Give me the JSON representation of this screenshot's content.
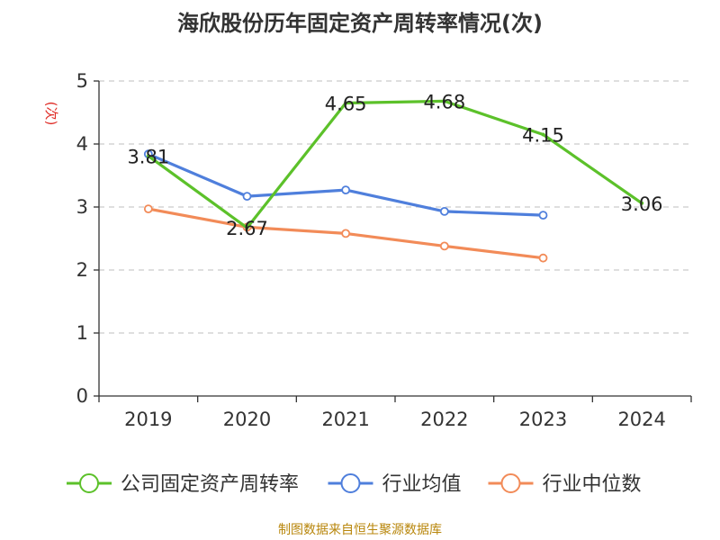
{
  "chart_data": {
    "type": "line",
    "title": "海欣股份历年固定资产周转率情况(次)",
    "ylabel": "(次)",
    "xlabel": "",
    "categories": [
      "2019",
      "2020",
      "2021",
      "2022",
      "2023",
      "2024"
    ],
    "ylim": [
      0,
      5
    ],
    "yticks": [
      "0",
      "1",
      "2",
      "3",
      "4",
      "5"
    ],
    "grid": true,
    "legend_position": "bottom",
    "series": [
      {
        "name": "公司固定资产周转率",
        "color": "#5cc12a",
        "values": [
          3.81,
          2.67,
          4.65,
          4.68,
          4.15,
          3.06
        ],
        "labels": [
          "3.81",
          "2.67",
          "4.65",
          "4.68",
          "4.15",
          "3.06"
        ],
        "show_markers": false
      },
      {
        "name": "行业均值",
        "color": "#4f7fdc",
        "values": [
          3.84,
          3.17,
          3.27,
          2.93,
          2.87,
          null
        ],
        "show_markers": true
      },
      {
        "name": "行业中位数",
        "color": "#f28b58",
        "values": [
          2.97,
          2.68,
          2.58,
          2.38,
          2.19,
          null
        ],
        "show_markers": true
      }
    ]
  },
  "source": "制图数据来自恒生聚源数据库"
}
